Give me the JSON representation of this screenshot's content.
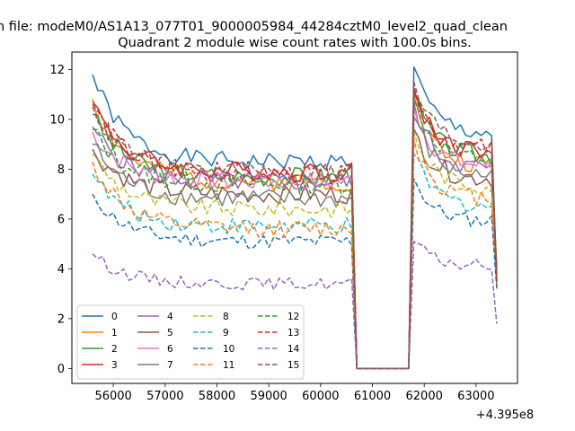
{
  "figure": {
    "suptitle": "n file: modeM0/AS1A13_077T01_9000005984_44284cztM0_level2_quad_clean",
    "title": "Quadrant 2 module wise count rates with 100.0s bins."
  },
  "chart_data": {
    "type": "line",
    "title": "Quadrant 2 module wise count rates with 100.0s bins.",
    "xlabel": "",
    "ylabel": "",
    "x_offset_label": "+4.395e8",
    "xlim": [
      55200,
      63800
    ],
    "ylim": [
      -0.6,
      12.7
    ],
    "xticks": [
      56000,
      57000,
      58000,
      59000,
      60000,
      61000,
      62000,
      63000
    ],
    "xtick_labels": [
      "56000",
      "57000",
      "58000",
      "59000",
      "60000",
      "61000",
      "62000",
      "63000"
    ],
    "yticks": [
      0,
      2,
      4,
      6,
      8,
      10,
      12
    ],
    "ytick_labels": [
      "0",
      "2",
      "4",
      "6",
      "8",
      "10",
      "12"
    ],
    "grid": false,
    "legend_position": "lower-left",
    "legend_columns": 4,
    "x_start": 55600,
    "x_step": 100,
    "gap_start": 60700,
    "gap_end": 61700,
    "end_x": 63400,
    "series": [
      {
        "name": "0",
        "color": "#1f77b4",
        "dash": "solid",
        "base": 8.3,
        "amp": 0.35,
        "start": 11.8,
        "end_value": 3.6,
        "post_peak": 12.1,
        "tail_base": 9.4,
        "seed": 1
      },
      {
        "name": "1",
        "color": "#ff7f0e",
        "dash": "solid",
        "base": 7.5,
        "amp": 0.4,
        "start": 10.8,
        "end_value": 4.0,
        "post_peak": 11.0,
        "tail_base": 8.1,
        "seed": 2
      },
      {
        "name": "2",
        "color": "#2ca02c",
        "dash": "solid",
        "base": 7.7,
        "amp": 0.4,
        "start": 10.2,
        "end_value": 3.4,
        "post_peak": 11.0,
        "tail_base": 8.5,
        "seed": 3
      },
      {
        "name": "3",
        "color": "#d62728",
        "dash": "solid",
        "base": 7.9,
        "amp": 0.4,
        "start": 10.7,
        "end_value": 3.6,
        "post_peak": 11.2,
        "tail_base": 8.7,
        "seed": 4
      },
      {
        "name": "4",
        "color": "#9467bd",
        "dash": "solid",
        "base": 7.5,
        "amp": 0.4,
        "start": 9.7,
        "end_value": 4.1,
        "post_peak": 10.7,
        "tail_base": 8.0,
        "seed": 5
      },
      {
        "name": "5",
        "color": "#8c564b",
        "dash": "solid",
        "base": 7.0,
        "amp": 0.4,
        "start": 8.8,
        "end_value": 3.8,
        "post_peak": 9.6,
        "tail_base": 7.6,
        "seed": 6
      },
      {
        "name": "6",
        "color": "#e377c2",
        "dash": "solid",
        "base": 7.5,
        "amp": 0.4,
        "start": 9.5,
        "end_value": 3.5,
        "post_peak": 10.5,
        "tail_base": 8.1,
        "seed": 7
      },
      {
        "name": "7",
        "color": "#7f7f7f",
        "dash": "solid",
        "base": 6.8,
        "amp": 0.4,
        "start": 9.0,
        "end_value": 3.5,
        "post_peak": 10.1,
        "tail_base": 7.7,
        "seed": 8
      },
      {
        "name": "8",
        "color": "#bcbd22",
        "dash": "dashed",
        "base": 6.4,
        "amp": 0.35,
        "start": 8.6,
        "end_value": 3.6,
        "post_peak": 9.5,
        "tail_base": 7.3,
        "seed": 9
      },
      {
        "name": "9",
        "color": "#17becf",
        "dash": "dashed",
        "base": 5.7,
        "amp": 0.35,
        "start": 7.8,
        "end_value": 3.4,
        "post_peak": 8.6,
        "tail_base": 6.5,
        "seed": 10
      },
      {
        "name": "10",
        "color": "#1f77b4",
        "dash": "dashed",
        "base": 5.1,
        "amp": 0.3,
        "start": 7.0,
        "end_value": 3.2,
        "post_peak": 7.6,
        "tail_base": 5.9,
        "seed": 11
      },
      {
        "name": "11",
        "color": "#ff7f0e",
        "dash": "dashed",
        "base": 5.6,
        "amp": 0.35,
        "start": 8.3,
        "end_value": 3.9,
        "post_peak": 9.2,
        "tail_base": 6.8,
        "seed": 12
      },
      {
        "name": "12",
        "color": "#2ca02c",
        "dash": "dashed",
        "base": 7.4,
        "amp": 0.4,
        "start": 9.6,
        "end_value": 4.0,
        "post_peak": 10.8,
        "tail_base": 8.4,
        "seed": 13
      },
      {
        "name": "13",
        "color": "#d62728",
        "dash": "dashed",
        "base": 7.8,
        "amp": 0.4,
        "start": 10.6,
        "end_value": 3.3,
        "post_peak": 11.3,
        "tail_base": 8.8,
        "seed": 14
      },
      {
        "name": "14",
        "color": "#9467bd",
        "dash": "dashed",
        "base": 3.4,
        "amp": 0.25,
        "start": 4.6,
        "end_value": 1.8,
        "post_peak": 5.1,
        "tail_base": 4.1,
        "seed": 15
      },
      {
        "name": "15",
        "color": "#8c564b",
        "dash": "dashed",
        "base": 7.9,
        "amp": 0.4,
        "start": 10.5,
        "end_value": 3.6,
        "post_peak": 11.5,
        "tail_base": 9.0,
        "seed": 16
      }
    ]
  }
}
